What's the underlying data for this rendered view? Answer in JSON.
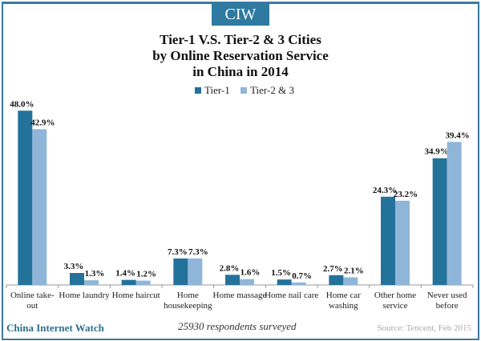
{
  "header": {
    "logo": "CIW",
    "title_lines": [
      "Tier-1 V.S. Tier-2 & 3 Cities",
      "by Online Reservation Service",
      "in China in 2014"
    ]
  },
  "legend": [
    {
      "label": "Tier-1",
      "color": "#23729a"
    },
    {
      "label": "Tier-2 & 3",
      "color": "#8fb6d9"
    }
  ],
  "footer": {
    "brand": "China Internet Watch",
    "note": "25930 respondents surveyed",
    "source": "Source: Tencent, Feb 2015"
  },
  "chart_data": {
    "type": "bar",
    "title": "Tier-1 V.S. Tier-2 & 3 Cities by Online Reservation Service in China in 2014",
    "categories": [
      [
        "Online take-",
        "out"
      ],
      [
        "Home laundry"
      ],
      [
        "Home haircut"
      ],
      [
        "Home",
        "housekeeping"
      ],
      [
        "Home massage"
      ],
      [
        "Home nail care"
      ],
      [
        "Home car",
        "washing"
      ],
      [
        "Other home",
        "service"
      ],
      [
        "Never used",
        "before"
      ]
    ],
    "series": [
      {
        "name": "Tier-1",
        "color": "#23729a",
        "values": [
          48.0,
          3.3,
          1.4,
          7.3,
          2.8,
          1.5,
          2.7,
          24.3,
          34.9
        ]
      },
      {
        "name": "Tier-2 & 3",
        "color": "#8fb6d9",
        "values": [
          42.9,
          1.3,
          1.2,
          7.3,
          1.6,
          0.7,
          2.1,
          23.2,
          39.4
        ]
      }
    ],
    "labels": [
      [
        "48.0%",
        "42.9%"
      ],
      [
        "3.3%",
        "1.3%"
      ],
      [
        "1.4%",
        "1.2%"
      ],
      [
        "7.3%",
        "7.3%"
      ],
      [
        "2.8%",
        "1.6%"
      ],
      [
        "1.5%",
        "0.7%"
      ],
      [
        "2.7%",
        "2.1%"
      ],
      [
        "24.3%",
        "23.2%"
      ],
      [
        "34.9%",
        "39.4%"
      ]
    ],
    "ylim": [
      0,
      50
    ],
    "grid": false,
    "legend_position": "top-center",
    "xlabel": "",
    "ylabel": ""
  }
}
